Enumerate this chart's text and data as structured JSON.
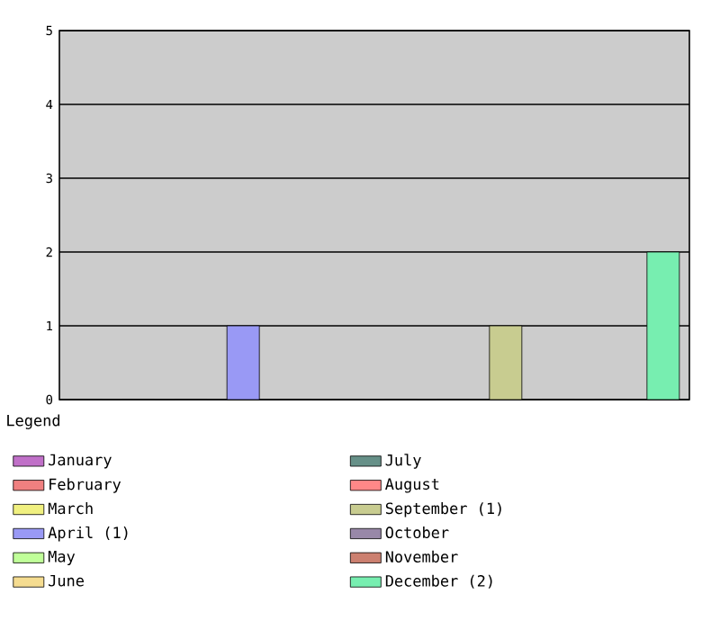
{
  "chart_data": {
    "type": "bar",
    "legend_title": "Legend",
    "categories": [
      null,
      null,
      null,
      null,
      null,
      null,
      null,
      null,
      null,
      null,
      null,
      null
    ],
    "series": [
      {
        "name": "January",
        "color": "#c070c8",
        "values": [
          0,
          null,
          null,
          null,
          null,
          null,
          null,
          null,
          null,
          null,
          null,
          null
        ]
      },
      {
        "name": "February",
        "color": "#f08080",
        "values": [
          null,
          0,
          null,
          null,
          null,
          null,
          null,
          null,
          null,
          null,
          null,
          null
        ]
      },
      {
        "name": "March",
        "color": "#f0f080",
        "values": [
          null,
          null,
          0,
          null,
          null,
          null,
          null,
          null,
          null,
          null,
          null,
          null
        ]
      },
      {
        "name": "April (1)",
        "color": "#9999f5",
        "values": [
          null,
          null,
          null,
          1,
          null,
          null,
          null,
          null,
          null,
          null,
          null,
          null
        ]
      },
      {
        "name": "May",
        "color": "#c0ff99",
        "values": [
          null,
          null,
          null,
          null,
          0,
          null,
          null,
          null,
          null,
          null,
          null,
          null
        ]
      },
      {
        "name": "June",
        "color": "#f5dc90",
        "values": [
          null,
          null,
          null,
          null,
          null,
          0,
          null,
          null,
          null,
          null,
          null,
          null
        ]
      },
      {
        "name": "July",
        "color": "#669088",
        "values": [
          null,
          null,
          null,
          null,
          null,
          null,
          0,
          null,
          null,
          null,
          null,
          null
        ]
      },
      {
        "name": "August",
        "color": "#ff8888",
        "values": [
          null,
          null,
          null,
          null,
          null,
          null,
          null,
          0,
          null,
          null,
          null,
          null
        ]
      },
      {
        "name": "September (1)",
        "color": "#c8cc90",
        "values": [
          null,
          null,
          null,
          null,
          null,
          null,
          null,
          null,
          1,
          null,
          null,
          null
        ]
      },
      {
        "name": "October",
        "color": "#9888a8",
        "values": [
          null,
          null,
          null,
          null,
          null,
          null,
          null,
          null,
          null,
          0,
          null,
          null
        ]
      },
      {
        "name": "November",
        "color": "#cc8070",
        "values": [
          null,
          null,
          null,
          null,
          null,
          null,
          null,
          null,
          null,
          null,
          0,
          null
        ]
      },
      {
        "name": "December (2)",
        "color": "#77eeb0",
        "values": [
          null,
          null,
          null,
          null,
          null,
          null,
          null,
          null,
          null,
          null,
          null,
          2
        ]
      }
    ],
    "ylim": [
      0,
      5
    ],
    "yticks": [
      0,
      1,
      2,
      3,
      4,
      5
    ],
    "grid": "y",
    "legend": "bottom"
  }
}
